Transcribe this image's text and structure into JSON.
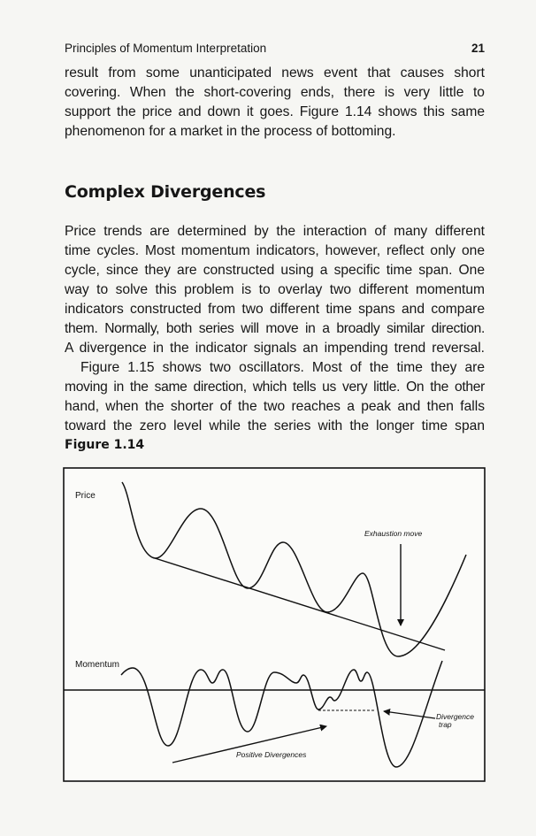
{
  "header": {
    "running_title": "Principles of Momentum Interpretation",
    "page_number": "21"
  },
  "paragraph1": [
    "result from some unanticipated news event that causes short",
    "covering. When the short-covering ends, there is very little to",
    "support the price and down it goes.  Figure 1.14 shows this same",
    "phenomenon for a market in the process of bottoming."
  ],
  "section_heading": "Complex Divergences",
  "paragraph2": [
    "Price trends are determined by the interaction of many different",
    "time cycles.  Most momentum indicators, however, reflect only one",
    "cycle, since they are constructed using a specific time span.  One",
    "way to solve this problem is to overlay two different momentum",
    "indicators constructed from two different time spans and compare",
    "them.  Normally, both series will move in a broadly similar direction.",
    "A divergence in the indicator signals an impending trend reversal."
  ],
  "paragraph3": [
    "Figure 1.15 shows two oscillators.  Most of the time they are",
    "moving in the same direction, which tells us very little.  On the other",
    "hand, when the shorter of the two reaches a peak and then falls",
    "toward the zero level while the series with the longer time span"
  ],
  "figure": {
    "caption": "Figure 1.14",
    "labels": {
      "price": "Price",
      "momentum": "Momentum",
      "exhaustion": "Exhaustion move",
      "divergence_trap_1": "Divergence",
      "divergence_trap_2": "trap",
      "positive_divergences": "Positive Divergences"
    }
  }
}
